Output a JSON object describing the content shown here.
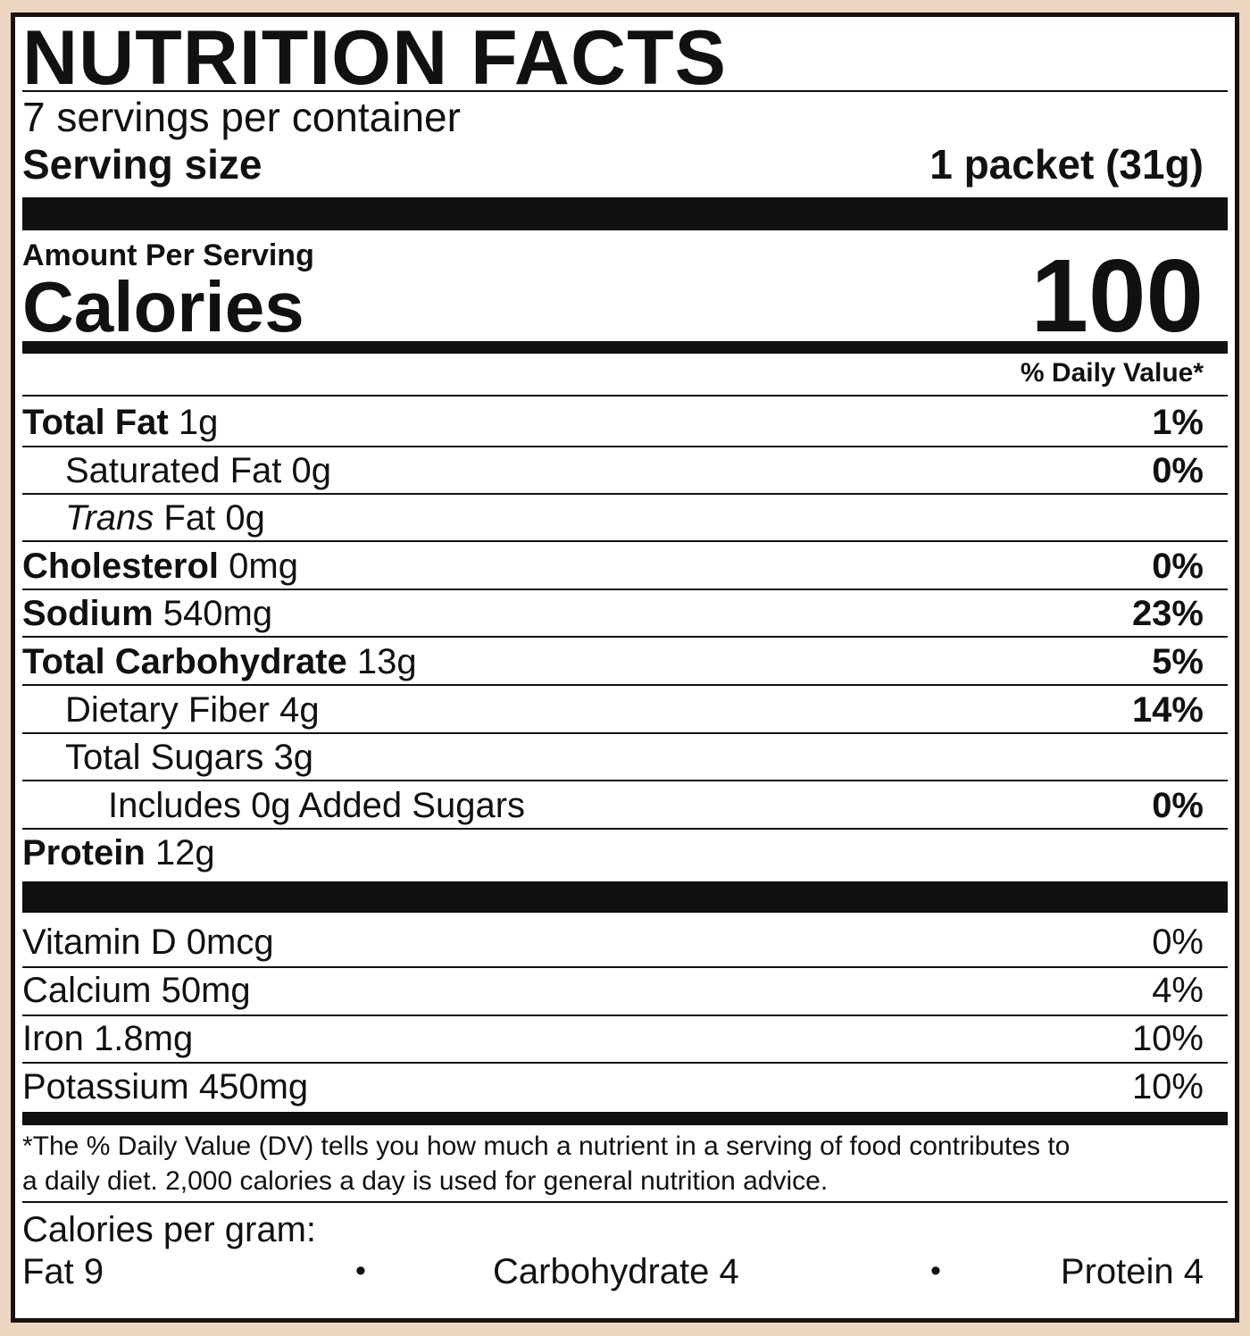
{
  "title": "NUTRITION FACTS",
  "servings_per_container": "7 servings per container",
  "serving_size": {
    "label": "Serving size",
    "value": "1 packet (31g)"
  },
  "amount_per_serving": "Amount Per Serving",
  "calories": {
    "label": "Calories",
    "value": "100"
  },
  "daily_value_header": "% Daily Value*",
  "nutrients": [
    {
      "name": "Total Fat",
      "amount": "1g",
      "dv": "1%"
    },
    {
      "name": "Saturated Fat",
      "amount": "0g",
      "dv": "0%"
    },
    {
      "name_italic": "Trans",
      "name": "Fat",
      "amount": "0g",
      "dv": ""
    },
    {
      "name": "Cholesterol",
      "amount": "0mg",
      "dv": "0%"
    },
    {
      "name": "Sodium",
      "amount": "540mg",
      "dv": "23%"
    },
    {
      "name": "Total Carbohydrate",
      "amount": "13g",
      "dv": "5%"
    },
    {
      "name": "Dietary Fiber",
      "amount": "4g",
      "dv": "14%"
    },
    {
      "name": "Total Sugars",
      "amount": "3g",
      "dv": ""
    },
    {
      "name": "Includes 0g Added Sugars",
      "amount": "",
      "dv": "0%"
    },
    {
      "name": "Protein",
      "amount": "12g",
      "dv": ""
    }
  ],
  "vitamins": [
    {
      "name": "Vitamin D",
      "amount": "0mcg",
      "dv": "0%"
    },
    {
      "name": "Calcium",
      "amount": "50mg",
      "dv": "4%"
    },
    {
      "name": "Iron",
      "amount": "1.8mg",
      "dv": "10%"
    },
    {
      "name": "Potassium",
      "amount": "450mg",
      "dv": "10%"
    }
  ],
  "footnote": {
    "line1": "*The % Daily Value (DV) tells you how much a nutrient in a serving of food contributes to",
    "line2": "a daily diet. 2,000 calories a day is used for general nutrition advice."
  },
  "calories_per_gram": {
    "label": "Calories per gram:",
    "fat": "Fat 9",
    "carbohydrate": "Carbohydrate 4",
    "protein": "Protein 4",
    "separator": "•"
  },
  "colors": {
    "background": "#ecd6c0",
    "border": "#1a1110",
    "ink": "#111111"
  }
}
